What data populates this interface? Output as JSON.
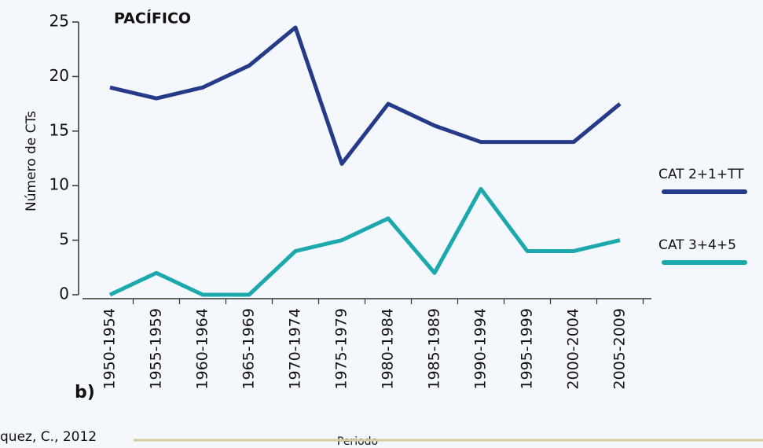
{
  "chart_data": {
    "type": "line",
    "title": "PACÍFICO",
    "panel_label": "b)",
    "x_label": "Periodo",
    "y_label": "Número de CTs",
    "source": "quez, C., 2012",
    "categories": [
      "1950-1954",
      "1955-1959",
      "1960-1964",
      "1965-1969",
      "1970-1974",
      "1975-1979",
      "1980-1984",
      "1985-1989",
      "1990-1994",
      "1995-1999",
      "2000-2004",
      "2005-2009"
    ],
    "series": [
      {
        "name": "CAT 2+1+TT",
        "color": "#263a8a",
        "values": [
          19,
          18,
          19,
          21,
          24.5,
          12,
          17.5,
          15.5,
          14,
          14,
          14,
          17.5
        ]
      },
      {
        "name": "CAT 3+4+5",
        "color": "#1ba9ae",
        "values": [
          0,
          2,
          0,
          0,
          4,
          5,
          7,
          2,
          9.7,
          4,
          4,
          5
        ]
      }
    ],
    "ylim": [
      0,
      25
    ],
    "yticks": [
      0,
      5,
      10,
      15,
      20,
      25
    ],
    "legend": "right"
  }
}
